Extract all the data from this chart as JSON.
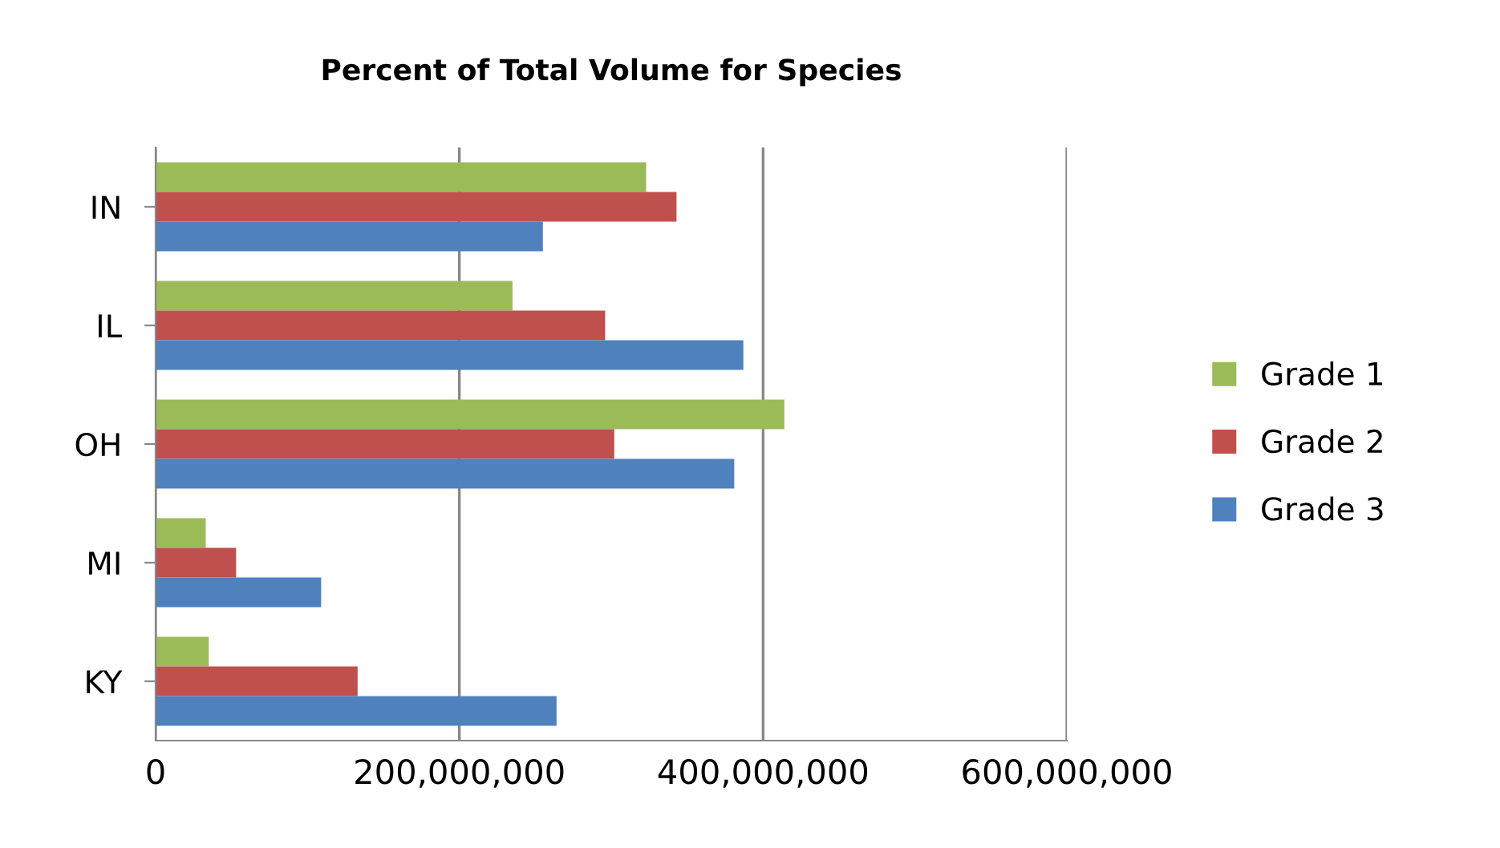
{
  "chart_data": {
    "type": "bar",
    "orientation": "horizontal",
    "title": "Percent of Total Volume for Species",
    "categories": [
      "IN",
      "IL",
      "OH",
      "MI",
      "KY"
    ],
    "series": [
      {
        "name": "Grade 1",
        "color": "#9bbb59",
        "values": [
          323000000,
          235000000,
          414000000,
          33000000,
          35000000
        ]
      },
      {
        "name": "Grade 2",
        "color": "#c0504d",
        "values": [
          343000000,
          296000000,
          302000000,
          53000000,
          133000000
        ]
      },
      {
        "name": "Grade 3",
        "color": "#4f81bd",
        "values": [
          255000000,
          387000000,
          381000000,
          109000000,
          264000000
        ]
      }
    ],
    "xlim": [
      0,
      600000000
    ],
    "xticks": [
      {
        "value": 0,
        "label": "0"
      },
      {
        "value": 200000000,
        "label": "200,000,000"
      },
      {
        "value": 400000000,
        "label": "400,000,000"
      },
      {
        "value": 600000000,
        "label": "600,000,000"
      }
    ],
    "grid": "x",
    "legend": "right"
  }
}
